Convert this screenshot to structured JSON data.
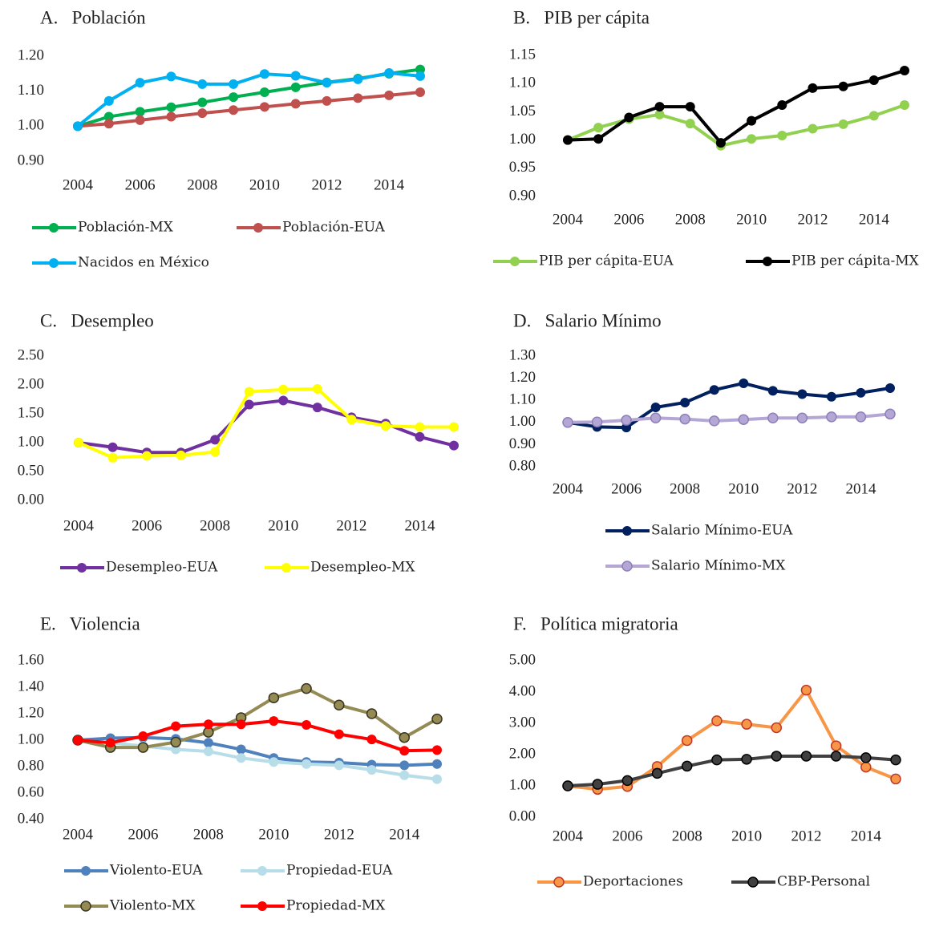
{
  "chart_data": [
    {
      "type": "line",
      "title": "A.   Población",
      "categories": [
        "2004",
        null,
        "2006",
        null,
        "2008",
        null,
        "2010",
        null,
        "2012",
        null,
        "2014",
        null
      ],
      "ylim": [
        0.9,
        1.2
      ],
      "yticks": [
        {
          "value": 0.9,
          "label": "0.90"
        },
        {
          "value": 1.0,
          "label": "1.00"
        },
        {
          "value": 1.1,
          "label": "1.10"
        },
        {
          "value": 1.2,
          "label": "1.20"
        }
      ],
      "series": [
        {
          "name": "Población-MX",
          "color": "#00b050",
          "values": [
            1.0,
            1.027,
            1.041,
            1.054,
            1.068,
            1.083,
            1.097,
            1.111,
            1.125,
            1.136,
            1.15,
            1.162
          ]
        },
        {
          "name": "Población-EUA",
          "color": "#c0504d",
          "values": [
            1.0,
            1.007,
            1.017,
            1.027,
            1.037,
            1.046,
            1.055,
            1.064,
            1.072,
            1.08,
            1.088,
            1.097
          ]
        },
        {
          "name": "Nacidos en México",
          "color": "#00b0f0",
          "values": [
            1.0,
            1.072,
            1.124,
            1.142,
            1.12,
            1.12,
            1.149,
            1.144,
            1.124,
            1.134,
            1.152,
            1.143
          ]
        }
      ]
    },
    {
      "type": "line",
      "title": "B.   PIB per cápita",
      "categories": [
        "2004",
        null,
        "2006",
        null,
        "2008",
        null,
        "2010",
        null,
        "2012",
        null,
        "2014",
        null
      ],
      "ylim": [
        0.9,
        1.15
      ],
      "yticks": [
        {
          "value": 0.9,
          "label": "0.90"
        },
        {
          "value": 0.95,
          "label": "0.95"
        },
        {
          "value": 1.0,
          "label": "1.00"
        },
        {
          "value": 1.05,
          "label": "1.05"
        },
        {
          "value": 1.1,
          "label": "1.10"
        },
        {
          "value": 1.15,
          "label": "1.15"
        }
      ],
      "series": [
        {
          "name": "PIB per cápita-EUA",
          "color": "#92d050",
          "values": [
            1.0,
            1.022,
            1.037,
            1.045,
            1.029,
            0.99,
            1.002,
            1.008,
            1.02,
            1.028,
            1.043,
            1.062
          ]
        },
        {
          "name": "PIB per cápita-MX",
          "color": "#000000",
          "values": [
            1.0,
            1.002,
            1.04,
            1.059,
            1.059,
            0.995,
            1.034,
            1.062,
            1.092,
            1.095,
            1.106,
            1.123
          ]
        }
      ]
    },
    {
      "type": "line",
      "title": "C.   Desempleo",
      "categories": [
        "2004",
        null,
        "2006",
        null,
        "2008",
        null,
        "2010",
        null,
        "2012",
        null,
        "2014",
        null
      ],
      "ylim": [
        0,
        2.5
      ],
      "yticks": [
        {
          "value": 0,
          "label": "0.00"
        },
        {
          "value": 0.5,
          "label": "0.50"
        },
        {
          "value": 1.0,
          "label": "1.00"
        },
        {
          "value": 1.5,
          "label": "1.50"
        },
        {
          "value": 2.0,
          "label": "2.00"
        },
        {
          "value": 2.5,
          "label": "2.50"
        }
      ],
      "series": [
        {
          "name": "Desempleo-EUA",
          "color": "#7030a0",
          "values": [
            1.0,
            0.92,
            0.83,
            0.83,
            1.05,
            1.66,
            1.73,
            1.61,
            1.44,
            1.33,
            1.1,
            0.95
          ]
        },
        {
          "name": "Desempleo-MX",
          "color": "#ffff00",
          "values": [
            1.0,
            0.74,
            0.77,
            0.78,
            0.84,
            1.88,
            1.92,
            1.93,
            1.4,
            1.29,
            1.27,
            1.27
          ]
        }
      ]
    },
    {
      "type": "line",
      "title": "D.   Salario Mínimo",
      "categories": [
        "2004",
        null,
        "2006",
        null,
        "2008",
        null,
        "2010",
        null,
        "2012",
        null,
        "2014",
        null
      ],
      "ylim": [
        0.8,
        1.3
      ],
      "yticks": [
        {
          "value": 0.8,
          "label": "0.80"
        },
        {
          "value": 0.9,
          "label": "0.90"
        },
        {
          "value": 1.0,
          "label": "1.00"
        },
        {
          "value": 1.1,
          "label": "1.10"
        },
        {
          "value": 1.2,
          "label": "1.20"
        },
        {
          "value": 1.3,
          "label": "1.30"
        }
      ],
      "series": [
        {
          "name": "Salario Mínimo-EUA",
          "color": "#002060",
          "values": [
            1.0,
            0.98,
            0.977,
            1.068,
            1.09,
            1.147,
            1.177,
            1.143,
            1.128,
            1.116,
            1.134,
            1.155
          ]
        },
        {
          "name": "Salario Mínimo-MX",
          "color": "#b4a7d6",
          "edgecolor": "#8e80b8",
          "values": [
            1.0,
            1.002,
            1.01,
            1.02,
            1.015,
            1.007,
            1.013,
            1.02,
            1.02,
            1.025,
            1.025,
            1.038
          ]
        }
      ]
    },
    {
      "type": "line",
      "title": "E.   Violencia",
      "categories": [
        "2004",
        null,
        "2006",
        null,
        "2008",
        null,
        "2010",
        null,
        "2012",
        null,
        "2014",
        null
      ],
      "ylim": [
        0.4,
        1.6
      ],
      "yticks": [
        {
          "value": 0.4,
          "label": "0.40"
        },
        {
          "value": 0.6,
          "label": "0.60"
        },
        {
          "value": 0.8,
          "label": "0.80"
        },
        {
          "value": 1.0,
          "label": "1.00"
        },
        {
          "value": 1.2,
          "label": "1.20"
        },
        {
          "value": 1.4,
          "label": "1.40"
        },
        {
          "value": 1.6,
          "label": "1.60"
        }
      ],
      "series": [
        {
          "name": "Violento-EUA",
          "color": "#4f81bd",
          "values": [
            1.0,
            1.015,
            1.02,
            1.01,
            0.98,
            0.93,
            0.865,
            0.835,
            0.83,
            0.815,
            0.81,
            0.82
          ]
        },
        {
          "name": "Propiedad-EUA",
          "color": "#b7dde8",
          "values": [
            1.0,
            0.98,
            0.955,
            0.93,
            0.915,
            0.865,
            0.835,
            0.82,
            0.81,
            0.775,
            0.735,
            0.705
          ]
        },
        {
          "name": "Violento-MX",
          "color": "#948a54",
          "edgecolor": "#3a3520",
          "values": [
            1.0,
            0.945,
            0.945,
            0.985,
            1.06,
            1.17,
            1.32,
            1.39,
            1.265,
            1.2,
            1.02,
            1.16
          ]
        },
        {
          "name": "Propiedad-MX",
          "color": "#ff0000",
          "values": [
            1.0,
            0.98,
            1.03,
            1.105,
            1.12,
            1.12,
            1.145,
            1.115,
            1.045,
            1.005,
            0.92,
            0.925
          ]
        }
      ]
    },
    {
      "type": "line",
      "title": "F.   Política migratoria",
      "categories": [
        "2004",
        null,
        "2006",
        null,
        "2008",
        null,
        "2010",
        null,
        "2012",
        null,
        "2014",
        null
      ],
      "ylim": [
        0,
        5
      ],
      "yticks": [
        {
          "value": 0,
          "label": "0.00"
        },
        {
          "value": 1,
          "label": "1.00"
        },
        {
          "value": 2,
          "label": "2.00"
        },
        {
          "value": 3,
          "label": "3.00"
        },
        {
          "value": 4,
          "label": "4.00"
        },
        {
          "value": 5,
          "label": "5.00"
        }
      ],
      "series": [
        {
          "name": "Deportaciones",
          "color": "#f79646",
          "edgecolor": "#c0392b",
          "values": [
            1.0,
            0.89,
            0.98,
            1.62,
            2.45,
            3.08,
            2.97,
            2.86,
            4.06,
            2.28,
            1.6,
            1.22
          ]
        },
        {
          "name": "CBP-Personal",
          "color": "#404040",
          "edgecolor": "#000000",
          "values": [
            1.0,
            1.05,
            1.17,
            1.4,
            1.63,
            1.83,
            1.85,
            1.95,
            1.95,
            1.95,
            1.9,
            1.83
          ]
        }
      ]
    }
  ]
}
